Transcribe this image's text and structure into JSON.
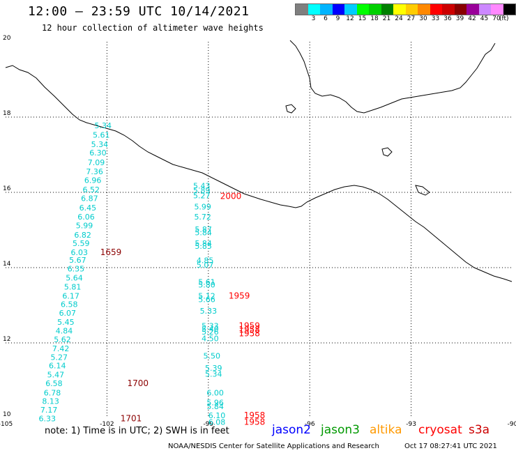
{
  "header": {
    "title": "12:00 – 23:59 UTC 10/14/2021",
    "subtitle": "12 hour collection of altimeter wave heights"
  },
  "legend": {
    "unit_label": "(ft)",
    "bins": [
      {
        "label": "",
        "color": "#7f7f7f"
      },
      {
        "label": "3",
        "color": "#00ffff"
      },
      {
        "label": "6",
        "color": "#00b4ff"
      },
      {
        "label": "9",
        "color": "#0000ff"
      },
      {
        "label": "12",
        "color": "#00ccff"
      },
      {
        "label": "15",
        "color": "#00ff00"
      },
      {
        "label": "18",
        "color": "#00d000"
      },
      {
        "label": "21",
        "color": "#008000"
      },
      {
        "label": "24",
        "color": "#ffff00"
      },
      {
        "label": "27",
        "color": "#ffcc00"
      },
      {
        "label": "30",
        "color": "#ff8800"
      },
      {
        "label": "33",
        "color": "#ff0000"
      },
      {
        "label": "36",
        "color": "#cc0000"
      },
      {
        "label": "39",
        "color": "#880000"
      },
      {
        "label": "42",
        "color": "#990099"
      },
      {
        "label": "45",
        "color": "#cc88ff"
      },
      {
        "label": "70",
        "color": "#ff88ff"
      },
      {
        "label": "",
        "color": "#000000"
      }
    ]
  },
  "map": {
    "lon_range": [
      -105,
      -90
    ],
    "lat_range": [
      10,
      20
    ],
    "lon_ticks": [
      "-105",
      "-102",
      "-99",
      "-96",
      "-93",
      "-90"
    ],
    "lat_ticks": [
      "20",
      "18",
      "16",
      "14",
      "12",
      "10"
    ],
    "colors": {
      "wave_text": "#00cccc",
      "time_dark": "#8b0000",
      "time_red": "#ff0000"
    },
    "track_a_values": [
      {
        "lat": 17.7,
        "lon": -102.37,
        "v": "5.34"
      },
      {
        "lat": 17.45,
        "lon": -102.42,
        "v": "5.61"
      },
      {
        "lat": 17.2,
        "lon": -102.47,
        "v": "5.34"
      },
      {
        "lat": 16.98,
        "lon": -102.52,
        "v": "6.30"
      },
      {
        "lat": 16.72,
        "lon": -102.57,
        "v": "7.09"
      },
      {
        "lat": 16.48,
        "lon": -102.62,
        "v": "7.36"
      },
      {
        "lat": 16.25,
        "lon": -102.67,
        "v": "6.96"
      },
      {
        "lat": 16.0,
        "lon": -102.72,
        "v": "6.52"
      },
      {
        "lat": 15.77,
        "lon": -102.77,
        "v": "6.87"
      },
      {
        "lat": 15.52,
        "lon": -102.82,
        "v": "6.45"
      },
      {
        "lat": 15.28,
        "lon": -102.87,
        "v": "6.06"
      },
      {
        "lat": 15.05,
        "lon": -102.92,
        "v": "5.99"
      },
      {
        "lat": 14.8,
        "lon": -102.97,
        "v": "6.82"
      },
      {
        "lat": 14.57,
        "lon": -103.02,
        "v": "5.59"
      },
      {
        "lat": 14.33,
        "lon": -103.07,
        "v": "6.03"
      },
      {
        "lat": 14.13,
        "lon": -103.12,
        "v": "5.67"
      },
      {
        "lat": 13.9,
        "lon": -103.17,
        "v": "6.35"
      },
      {
        "lat": 13.66,
        "lon": -103.22,
        "v": "5.64"
      },
      {
        "lat": 13.42,
        "lon": -103.27,
        "v": "5.81"
      },
      {
        "lat": 13.18,
        "lon": -103.32,
        "v": "6.17"
      },
      {
        "lat": 12.95,
        "lon": -103.37,
        "v": "6.58"
      },
      {
        "lat": 12.72,
        "lon": -103.42,
        "v": "6.07"
      },
      {
        "lat": 12.48,
        "lon": -103.47,
        "v": "5.45"
      },
      {
        "lat": 12.25,
        "lon": -103.52,
        "v": "4.84"
      },
      {
        "lat": 12.02,
        "lon": -103.57,
        "v": "5.62"
      },
      {
        "lat": 11.78,
        "lon": -103.62,
        "v": "7.42"
      },
      {
        "lat": 11.55,
        "lon": -103.67,
        "v": "5.27"
      },
      {
        "lat": 11.32,
        "lon": -103.72,
        "v": "6.14"
      },
      {
        "lat": 11.08,
        "lon": -103.77,
        "v": "5.47"
      },
      {
        "lat": 10.85,
        "lon": -103.82,
        "v": "6.58"
      },
      {
        "lat": 10.6,
        "lon": -103.87,
        "v": "6.78"
      },
      {
        "lat": 10.38,
        "lon": -103.92,
        "v": "8.13"
      },
      {
        "lat": 10.15,
        "lon": -103.97,
        "v": "7.17"
      },
      {
        "lat": 9.92,
        "lon": -104.02,
        "v": "6.33"
      }
    ],
    "track_b_values": [
      {
        "lat": 16.1,
        "lon": -99.45,
        "v": "5.43"
      },
      {
        "lat": 15.98,
        "lon": -99.45,
        "v": "5.89"
      },
      {
        "lat": 15.84,
        "lon": -99.45,
        "v": "5.27"
      },
      {
        "lat": 15.55,
        "lon": -99.42,
        "v": "5.99"
      },
      {
        "lat": 15.28,
        "lon": -99.42,
        "v": "5.72"
      },
      {
        "lat": 14.94,
        "lon": -99.4,
        "v": "5.87"
      },
      {
        "lat": 14.86,
        "lon": -99.4,
        "v": "5.84"
      },
      {
        "lat": 14.57,
        "lon": -99.4,
        "v": "5.84"
      },
      {
        "lat": 14.5,
        "lon": -99.4,
        "v": "5.85"
      },
      {
        "lat": 14.12,
        "lon": -99.35,
        "v": "4.85"
      },
      {
        "lat": 14.0,
        "lon": -99.35,
        "v": "5.07"
      },
      {
        "lat": 13.55,
        "lon": -99.3,
        "v": "5.61"
      },
      {
        "lat": 13.47,
        "lon": -99.3,
        "v": "5.80"
      },
      {
        "lat": 13.18,
        "lon": -99.3,
        "v": "5.12"
      },
      {
        "lat": 13.08,
        "lon": -99.3,
        "v": "5.66"
      },
      {
        "lat": 12.78,
        "lon": -99.25,
        "v": "5.33"
      },
      {
        "lat": 12.38,
        "lon": -99.2,
        "v": "5.33"
      },
      {
        "lat": 12.3,
        "lon": -99.2,
        "v": "5.40"
      },
      {
        "lat": 12.22,
        "lon": -99.2,
        "v": "5.26"
      },
      {
        "lat": 12.05,
        "lon": -99.2,
        "v": "4.50"
      },
      {
        "lat": 11.58,
        "lon": -99.15,
        "v": "5.50"
      },
      {
        "lat": 11.26,
        "lon": -99.1,
        "v": "5.39"
      },
      {
        "lat": 11.1,
        "lon": -99.1,
        "v": "5.34"
      },
      {
        "lat": 10.6,
        "lon": -99.05,
        "v": "6.00"
      },
      {
        "lat": 10.34,
        "lon": -99.05,
        "v": "5.96"
      },
      {
        "lat": 10.24,
        "lon": -99.05,
        "v": "5.84"
      },
      {
        "lat": 10.0,
        "lon": -99.0,
        "v": "6.10"
      },
      {
        "lat": 9.82,
        "lon": -99.0,
        "v": "6.08"
      }
    ],
    "time_labels": [
      {
        "lat": 15.82,
        "lon": -98.65,
        "v": "2000",
        "c": "red"
      },
      {
        "lat": 14.33,
        "lon": -102.2,
        "v": "1659",
        "c": "dark"
      },
      {
        "lat": 13.18,
        "lon": -98.4,
        "v": "1959",
        "c": "red"
      },
      {
        "lat": 12.38,
        "lon": -98.1,
        "v": "1959",
        "c": "red"
      },
      {
        "lat": 12.28,
        "lon": -98.1,
        "v": "1958",
        "c": "red"
      },
      {
        "lat": 12.18,
        "lon": -98.1,
        "v": "1958",
        "c": "red"
      },
      {
        "lat": 10.85,
        "lon": -101.4,
        "v": "1700",
        "c": "dark"
      },
      {
        "lat": 10.0,
        "lon": -97.95,
        "v": "1958",
        "c": "red"
      },
      {
        "lat": 9.82,
        "lon": -97.95,
        "v": "1958",
        "c": "red"
      },
      {
        "lat": 9.92,
        "lon": -101.6,
        "v": "1701",
        "c": "dark"
      }
    ]
  },
  "footer": {
    "note": "note:  1) Time is in UTC;  2) SWH is in feet",
    "satellites": [
      {
        "name": "jason2",
        "color": "#0000ff"
      },
      {
        "name": "jason3",
        "color": "#009900"
      },
      {
        "name": "altika",
        "color": "#ff9900"
      },
      {
        "name": "cryosat",
        "color": "#ff0000"
      },
      {
        "name": "s3a",
        "color": "#cc0000"
      }
    ],
    "credit": "NOAA/NESDIS Center for Satellite Applications and Research",
    "timestamp": "Oct 17 08:27:41 UTC 2021"
  }
}
